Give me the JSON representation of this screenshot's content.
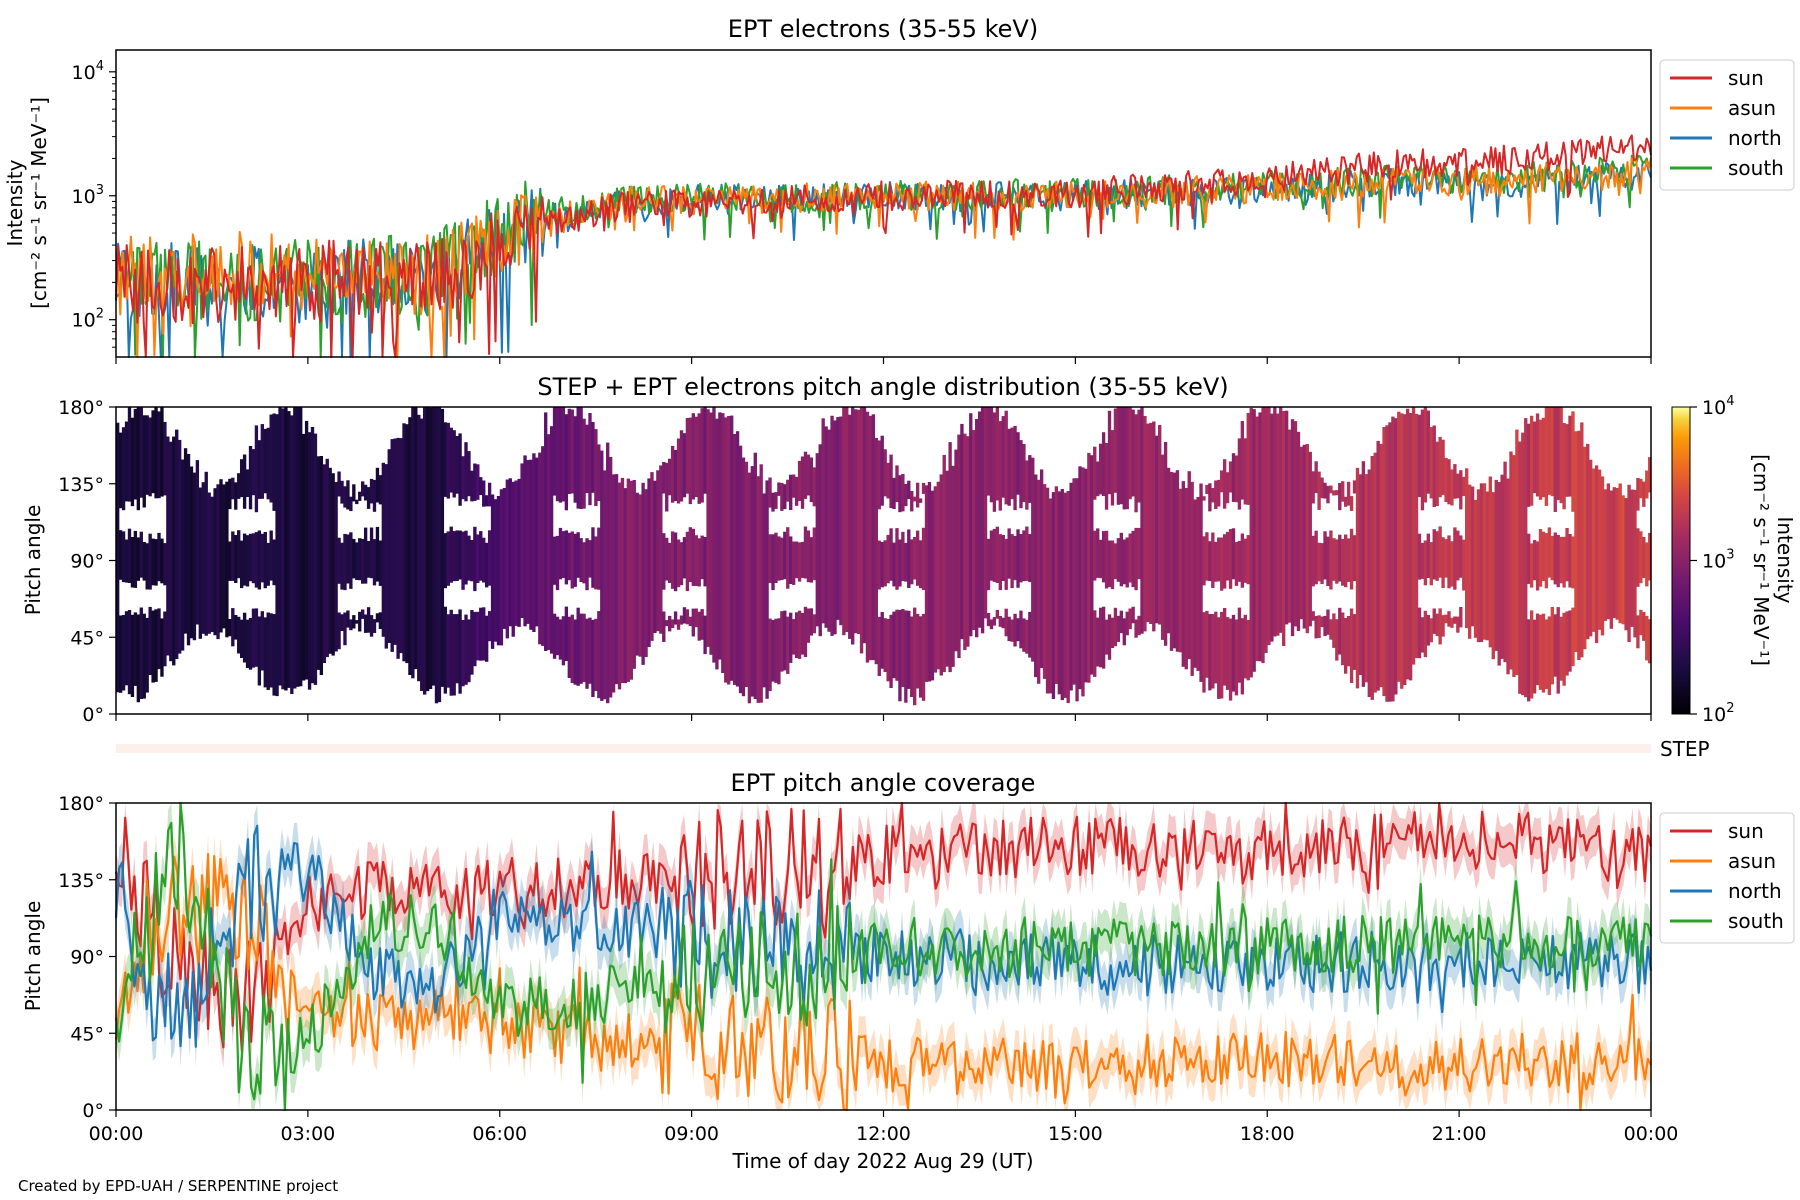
{
  "credit": "Created by EPD-UAH / SERPENTINE project",
  "colors": {
    "sun": "#d62728",
    "asun": "#ff7f0e",
    "north": "#1f77b4",
    "south": "#2ca02c"
  },
  "chart_data": [
    {
      "type": "line",
      "title": "EPT electrons (35-55 keV)",
      "ylabel_line1": "Intensity",
      "ylabel_line2": "[cm⁻² s⁻¹ sr⁻¹ MeV⁻¹]",
      "yscale": "log",
      "ylim": [
        50,
        15000
      ],
      "yticks": [
        {
          "value": 100,
          "base": "10",
          "exp": "2"
        },
        {
          "value": 1000,
          "base": "10",
          "exp": "3"
        },
        {
          "value": 10000,
          "base": "10",
          "exp": "4"
        }
      ],
      "xlim_hours": [
        0,
        24
      ],
      "legend_position": "outside-right-top",
      "series": [
        {
          "name": "sun",
          "color": "#d62728",
          "anchors": [
            [
              0,
              190
            ],
            [
              2,
              200
            ],
            [
              5,
              210
            ],
            [
              6.5,
              500
            ],
            [
              8,
              850
            ],
            [
              10,
              900
            ],
            [
              12,
              1000
            ],
            [
              15,
              1050
            ],
            [
              18,
              1350
            ],
            [
              20,
              1800
            ],
            [
              22,
              2000
            ],
            [
              24,
              2500
            ]
          ]
        },
        {
          "name": "asun",
          "color": "#ff7f0e",
          "anchors": [
            [
              0,
              230
            ],
            [
              2,
              240
            ],
            [
              5,
              230
            ],
            [
              6.5,
              550
            ],
            [
              8,
              900
            ],
            [
              10,
              950
            ],
            [
              12,
              1000
            ],
            [
              15,
              1000
            ],
            [
              18,
              1150
            ],
            [
              20,
              1300
            ],
            [
              22,
              1350
            ],
            [
              24,
              1600
            ]
          ]
        },
        {
          "name": "north",
          "color": "#1f77b4",
          "anchors": [
            [
              0,
              200
            ],
            [
              2,
              190
            ],
            [
              5,
              220
            ],
            [
              6.5,
              600
            ],
            [
              8,
              900
            ],
            [
              10,
              950
            ],
            [
              12,
              980
            ],
            [
              15,
              1000
            ],
            [
              18,
              1150
            ],
            [
              20,
              1300
            ],
            [
              22,
              1300
            ],
            [
              24,
              1500
            ]
          ]
        },
        {
          "name": "south",
          "color": "#2ca02c",
          "anchors": [
            [
              0,
              210
            ],
            [
              2,
              200
            ],
            [
              5,
              230
            ],
            [
              6.5,
              650
            ],
            [
              8,
              950
            ],
            [
              10,
              980
            ],
            [
              12,
              1000
            ],
            [
              15,
              1050
            ],
            [
              18,
              1200
            ],
            [
              20,
              1350
            ],
            [
              22,
              1400
            ],
            [
              24,
              1650
            ]
          ]
        }
      ]
    },
    {
      "type": "heatmap",
      "title": "STEP + EPT electrons pitch angle distribution (35-55 keV)",
      "ylabel": "Pitch angle",
      "yticks": [
        "0°",
        "45°",
        "90°",
        "135°",
        "180°"
      ],
      "ylim": [
        0,
        180
      ],
      "xlim_hours": [
        0,
        24
      ],
      "colorbar": {
        "label": "Intensity",
        "units": "[cm⁻² s⁻¹ sr⁻¹ MeV⁻¹]",
        "scale": "log",
        "range": [
          100,
          10000
        ],
        "ticks": [
          {
            "value": 100,
            "base": "10",
            "exp": "2"
          },
          {
            "value": 1000,
            "base": "10",
            "exp": "3"
          },
          {
            "value": 10000,
            "base": "10",
            "exp": "4"
          }
        ],
        "colormap": "inferno"
      },
      "step_label": "STEP"
    },
    {
      "type": "line",
      "title": "EPT pitch angle coverage",
      "ylabel": "Pitch angle",
      "xlabel": "Time of day 2022 Aug 29 (UT)",
      "yticks": [
        "0°",
        "45°",
        "90°",
        "135°",
        "180°"
      ],
      "ylim": [
        0,
        180
      ],
      "xticks": [
        "00:00",
        "03:00",
        "06:00",
        "09:00",
        "12:00",
        "15:00",
        "18:00",
        "21:00",
        "00:00"
      ],
      "xlim_hours": [
        0,
        24
      ],
      "legend_position": "outside-right-top",
      "shaded_band": true,
      "series": [
        {
          "name": "sun",
          "color": "#d62728",
          "anchors": [
            [
              0,
              150
            ],
            [
              1,
              80
            ],
            [
              2,
              60
            ],
            [
              3,
              120
            ],
            [
              4,
              130
            ],
            [
              5,
              125
            ],
            [
              6,
              130
            ],
            [
              7,
              130
            ],
            [
              9,
              140
            ],
            [
              11,
              145
            ],
            [
              12,
              150
            ],
            [
              15,
              155
            ],
            [
              18,
              150
            ],
            [
              21,
              160
            ],
            [
              24,
              150
            ]
          ]
        },
        {
          "name": "asun",
          "color": "#ff7f0e",
          "anchors": [
            [
              0,
              50
            ],
            [
              1,
              120
            ],
            [
              2,
              110
            ],
            [
              3,
              60
            ],
            [
              4,
              50
            ],
            [
              5,
              55
            ],
            [
              6,
              50
            ],
            [
              7,
              45
            ],
            [
              9,
              40
            ],
            [
              11,
              35
            ],
            [
              12,
              25
            ],
            [
              15,
              25
            ],
            [
              18,
              30
            ],
            [
              21,
              25
            ],
            [
              24,
              30
            ]
          ]
        },
        {
          "name": "north",
          "color": "#1f77b4",
          "anchors": [
            [
              0,
              120
            ],
            [
              1,
              40
            ],
            [
              2,
              130
            ],
            [
              3,
              145
            ],
            [
              4,
              80
            ],
            [
              5,
              70
            ],
            [
              6,
              120
            ],
            [
              7,
              110
            ],
            [
              9,
              100
            ],
            [
              11,
              95
            ],
            [
              12,
              90
            ],
            [
              15,
              85
            ],
            [
              18,
              85
            ],
            [
              21,
              90
            ],
            [
              24,
              85
            ]
          ]
        },
        {
          "name": "south",
          "color": "#2ca02c",
          "anchors": [
            [
              0,
              60
            ],
            [
              1,
              150
            ],
            [
              2,
              30
            ],
            [
              3,
              40
            ],
            [
              4,
              110
            ],
            [
              5,
              110
            ],
            [
              6,
              60
            ],
            [
              7,
              60
            ],
            [
              9,
              80
            ],
            [
              11,
              85
            ],
            [
              12,
              95
            ],
            [
              15,
              95
            ],
            [
              18,
              95
            ],
            [
              21,
              100
            ],
            [
              24,
              95
            ]
          ]
        }
      ]
    }
  ]
}
